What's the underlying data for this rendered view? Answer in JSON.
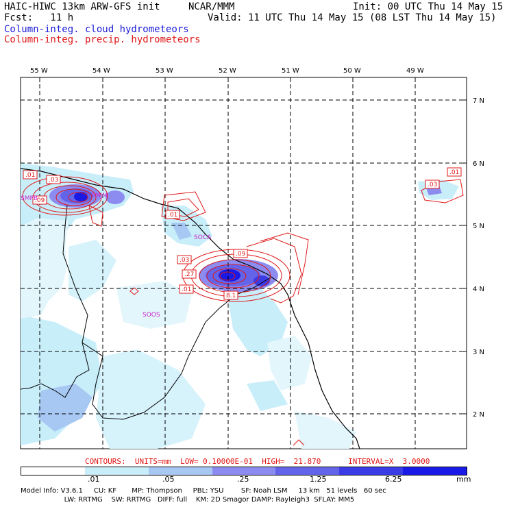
{
  "header": {
    "title_left": "HAIC-HIWC 13km ARW-GFS init",
    "title_org": "NCAR/MMM",
    "init": "Init: 00 UTC Thu 14 May 15",
    "fcst": "Fcst:   11 h",
    "valid": "Valid: 11 UTC Thu 14 May 15 (08 LST Thu 14 May 15)",
    "legend_cloud": "Column-integ. cloud hydrometeors",
    "legend_precip": "Column-integ. precip. hydrometeors"
  },
  "map": {
    "lon_labels": [
      "55 W",
      "54 W",
      "53 W",
      "52 W",
      "51 W",
      "50 W",
      "49 W"
    ],
    "lat_labels": [
      "7 N",
      "6 N",
      "5 N",
      "4 N",
      "3 N",
      "2 N"
    ],
    "stations": [
      "SMPB",
      "SOCA",
      "SOOS",
      "SMJM"
    ],
    "contour_labels": [
      ".01",
      ".03",
      ".09",
      ".01",
      ".03",
      ".27",
      ".01",
      ".09",
      "8.1",
      ".03",
      ".01"
    ],
    "colors": {
      "cloud_light": "#c8eefa",
      "cloud_mid": "#8c8cf0",
      "cloud_dark": "#1a1ae6",
      "precip": "#e01818",
      "coast": "#000000"
    }
  },
  "contour_info": "CONTOURS:  UNITS=mm  LOW= 0.10000E-01  HIGH=  21.870      INTERVAL=X  3.0000",
  "colorbar": {
    "ticks": [
      ".01",
      ".05",
      ".25",
      "1.25",
      "6.25"
    ],
    "unit": "mm",
    "colors": [
      "#ffffff",
      "#c8eefa",
      "#a8c8f4",
      "#8c8cf0",
      "#6464ea",
      "#3c3ce6",
      "#1a1ae6"
    ]
  },
  "model_info": {
    "line1": "Model Info: V3.6.1     CU: KF       MP: Thompson     PBL: YSU        SF: Noah LSM     13 km   51 levels   60 sec",
    "line2": "                    LW: RRTMG    SW: RRTMG   DIFF: full    KM: 2D Smagor DAMP: Rayleigh3  SFLAY: MM5"
  }
}
